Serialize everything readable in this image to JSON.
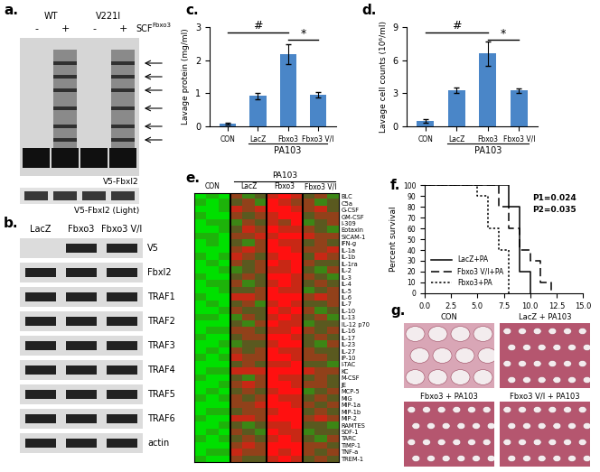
{
  "panel_labels": [
    "a.",
    "b.",
    "c.",
    "d.",
    "e.",
    "f.",
    "g."
  ],
  "blot_a": {
    "groups": [
      "WT",
      "V221I"
    ],
    "lanes": [
      "-",
      "+",
      "-",
      "+"
    ],
    "treatment": {
      "text": "SCF",
      "superscript": "Fbxo3"
    },
    "bands": [
      "V5-Fbxl2",
      "V5-Fbxl2 (Light)"
    ]
  },
  "blot_b": {
    "lanes": [
      "LacZ",
      "Fbxo3",
      "Fbxo3 V/I"
    ],
    "rows": [
      "V5",
      "Fbxl2",
      "TRAF1",
      "TRAF2",
      "TRAF3",
      "TRAF4",
      "TRAF5",
      "TRAF6",
      "actin"
    ]
  },
  "chart_data": [
    {
      "type": "bar",
      "y_label": "Lavage protein (mg/ml)",
      "categories": [
        "CON",
        "LacZ",
        "Fbxo3",
        "Fbxo3 V/I"
      ],
      "values": [
        0.08,
        0.92,
        2.18,
        0.95
      ],
      "errors": [
        0.02,
        0.1,
        0.3,
        0.08
      ],
      "color": "#4a86c8",
      "ylim": [
        0,
        3
      ],
      "yticks": [
        0,
        1,
        2,
        3
      ],
      "group_label": {
        "text": "PA103",
        "categories": [
          "LacZ",
          "Fbxo3",
          "Fbxo3 V/I"
        ]
      },
      "annotations": [
        {
          "text": "#",
          "from": "CON",
          "to": "Fbxo3"
        },
        {
          "text": "*",
          "from": "Fbxo3",
          "to": "Fbxo3 V/I"
        }
      ]
    },
    {
      "type": "bar",
      "y_label": "Lavage cell counts (10⁶/ml)",
      "categories": [
        "CON",
        "LacZ",
        "Fbxo3",
        "Fbxo3 V/I"
      ],
      "values": [
        0.5,
        3.3,
        6.6,
        3.25
      ],
      "errors": [
        0.15,
        0.25,
        1.1,
        0.2
      ],
      "color": "#4a86c8",
      "ylim": [
        0,
        9
      ],
      "yticks": [
        0,
        3,
        6,
        9
      ],
      "group_label": {
        "text": "PA103",
        "categories": [
          "LacZ",
          "Fbxo3",
          "Fbxo3 V/I"
        ]
      },
      "annotations": [
        {
          "text": "#",
          "from": "CON",
          "to": "Fbxo3"
        },
        {
          "text": "*",
          "from": "Fbxo3",
          "to": "Fbxo3 V/I"
        }
      ]
    },
    {
      "type": "heatmap",
      "rows": [
        "BLC",
        "C5a",
        "G-CSF",
        "GM-CSF",
        "I-309",
        "Eotaxin",
        "SICAM-1",
        "IFN-g",
        "IL-1a",
        "IL-1b",
        "IL-1ra",
        "IL-2",
        "IL-3",
        "IL-4",
        "IL-5",
        "IL-6",
        "IL-7",
        "IL-10",
        "IL-13",
        "IL-12 p70",
        "IL-16",
        "IL-17",
        "IL-23",
        "IL-27",
        "IP-10",
        "I-TAC",
        "KC",
        "M-CSF",
        "JE",
        "MCP-5",
        "MIG",
        "MIP-1a",
        "MIP-1b",
        "MIP-2",
        "RAMTES",
        "SDF-1",
        "TARC",
        "TIMP-1",
        "TNF-a",
        "TREM-1"
      ],
      "column_groups": [
        {
          "name": "CON",
          "columns": 3
        },
        {
          "name": "LacZ",
          "columns": 3
        },
        {
          "name": "Fbxo3",
          "columns": 3
        },
        {
          "name": "Fbxo3 V/I",
          "columns": 3
        }
      ],
      "group_label": {
        "text": "PA103",
        "groups": [
          "LacZ",
          "Fbxo3",
          "Fbxo3 V/I"
        ]
      },
      "cells": [
        [
          -3,
          -2,
          -3,
          1,
          -1,
          0,
          2,
          3,
          2,
          0,
          1,
          -1
        ],
        [
          -2,
          -3,
          -2,
          0,
          1,
          -1,
          3,
          2,
          1,
          1,
          -1,
          0
        ],
        [
          -3,
          -3,
          -2,
          2,
          1,
          2,
          3,
          3,
          2,
          1,
          2,
          0
        ],
        [
          -2,
          -3,
          -3,
          1,
          0,
          1,
          2,
          3,
          3,
          0,
          1,
          1
        ],
        [
          -3,
          -2,
          -2,
          -1,
          1,
          0,
          2,
          1,
          3,
          -1,
          0,
          1
        ],
        [
          -3,
          -3,
          -2,
          0,
          2,
          1,
          3,
          2,
          2,
          1,
          0,
          -1
        ],
        [
          -2,
          -2,
          -3,
          1,
          1,
          2,
          2,
          3,
          3,
          2,
          1,
          1
        ],
        [
          -3,
          -2,
          -3,
          0,
          -1,
          1,
          3,
          2,
          2,
          0,
          1,
          0
        ],
        [
          -3,
          -3,
          -3,
          1,
          2,
          1,
          3,
          3,
          2,
          1,
          1,
          2
        ],
        [
          -2,
          -3,
          -2,
          2,
          1,
          0,
          2,
          3,
          3,
          0,
          2,
          1
        ],
        [
          -3,
          -2,
          -3,
          1,
          0,
          1,
          3,
          2,
          3,
          1,
          0,
          0
        ],
        [
          -3,
          -3,
          -2,
          -1,
          0,
          1,
          2,
          2,
          3,
          0,
          -1,
          1
        ],
        [
          -2,
          -3,
          -3,
          0,
          1,
          0,
          3,
          3,
          2,
          1,
          0,
          -1
        ],
        [
          -3,
          -2,
          -2,
          1,
          -1,
          0,
          2,
          3,
          2,
          0,
          1,
          0
        ],
        [
          -3,
          -3,
          -2,
          0,
          0,
          1,
          3,
          2,
          2,
          -1,
          0,
          1
        ],
        [
          -2,
          -3,
          -3,
          2,
          2,
          1,
          3,
          3,
          3,
          1,
          2,
          1
        ],
        [
          -3,
          -2,
          -3,
          0,
          1,
          -1,
          2,
          3,
          2,
          0,
          0,
          1
        ],
        [
          -3,
          -3,
          -2,
          1,
          0,
          0,
          3,
          2,
          3,
          1,
          -1,
          0
        ],
        [
          -2,
          -2,
          -3,
          -1,
          1,
          0,
          2,
          3,
          2,
          0,
          1,
          -1
        ],
        [
          -3,
          -3,
          -3,
          0,
          -1,
          1,
          3,
          2,
          2,
          -1,
          0,
          0
        ],
        [
          -3,
          -2,
          -2,
          1,
          1,
          0,
          2,
          2,
          3,
          1,
          0,
          1
        ],
        [
          -2,
          -3,
          -3,
          0,
          1,
          1,
          3,
          3,
          2,
          0,
          1,
          0
        ],
        [
          -3,
          -3,
          -2,
          -1,
          0,
          0,
          2,
          3,
          3,
          0,
          -1,
          1
        ],
        [
          -3,
          -2,
          -3,
          1,
          0,
          1,
          3,
          2,
          2,
          1,
          0,
          0
        ],
        [
          -2,
          -3,
          -2,
          2,
          1,
          1,
          3,
          3,
          2,
          1,
          1,
          0
        ],
        [
          -3,
          -3,
          -3,
          0,
          1,
          0,
          2,
          2,
          3,
          0,
          0,
          -1
        ],
        [
          -3,
          -2,
          -2,
          2,
          2,
          2,
          3,
          3,
          3,
          2,
          1,
          1
        ],
        [
          -2,
          -3,
          -3,
          0,
          -1,
          1,
          3,
          2,
          2,
          0,
          1,
          0
        ],
        [
          -3,
          -3,
          -2,
          1,
          2,
          1,
          3,
          3,
          2,
          1,
          1,
          0
        ],
        [
          -3,
          -2,
          -3,
          0,
          1,
          0,
          2,
          3,
          3,
          -1,
          0,
          1
        ],
        [
          -2,
          -3,
          -2,
          1,
          0,
          1,
          3,
          2,
          2,
          0,
          1,
          0
        ],
        [
          -3,
          -3,
          -3,
          1,
          1,
          2,
          3,
          3,
          2,
          1,
          0,
          1
        ],
        [
          -3,
          -2,
          -2,
          0,
          1,
          1,
          2,
          3,
          3,
          0,
          1,
          0
        ],
        [
          -2,
          -3,
          -3,
          2,
          2,
          1,
          3,
          3,
          3,
          1,
          2,
          1
        ],
        [
          -3,
          -3,
          -2,
          0,
          -1,
          0,
          2,
          2,
          3,
          0,
          0,
          -1
        ],
        [
          -3,
          -2,
          -3,
          1,
          0,
          -1,
          3,
          2,
          2,
          -1,
          0,
          0
        ],
        [
          -2,
          -3,
          -2,
          0,
          1,
          0,
          2,
          3,
          2,
          0,
          -1,
          1
        ],
        [
          -3,
          -3,
          -3,
          1,
          2,
          1,
          3,
          3,
          3,
          1,
          1,
          0
        ],
        [
          -3,
          -2,
          -2,
          2,
          1,
          1,
          3,
          2,
          3,
          1,
          0,
          1
        ],
        [
          -2,
          -3,
          -3,
          1,
          0,
          0,
          2,
          3,
          2,
          0,
          1,
          0
        ]
      ]
    },
    {
      "type": "line",
      "y_label": "Percent survival",
      "xlim": [
        0,
        15
      ],
      "ylim": [
        0,
        100
      ],
      "xticks": [
        {
          "value": 0,
          "label": "0.0"
        },
        {
          "value": 2.5,
          "label": "2.5"
        },
        {
          "value": 5,
          "label": "5.0"
        },
        {
          "value": 7.5,
          "label": "7.5"
        },
        {
          "value": 10,
          "label": "10.0"
        },
        {
          "value": 12.5,
          "label": "12.5"
        },
        {
          "value": 15,
          "label": "15.0"
        }
      ],
      "yticks": [
        0,
        10,
        20,
        30,
        40,
        50,
        60,
        70,
        80,
        90,
        100
      ],
      "legend": "lower left",
      "series": [
        {
          "name": "LacZ+PA",
          "line_style": "solid",
          "x": [
            0,
            8,
            9,
            10
          ],
          "values": [
            100,
            80,
            20,
            0
          ]
        },
        {
          "name": "Fbxo3 V/I+PA",
          "line_style": "dashed",
          "x": [
            0,
            7,
            8,
            9,
            10,
            11,
            12
          ],
          "values": [
            100,
            80,
            60,
            40,
            30,
            10,
            0
          ]
        },
        {
          "name": "Fbxo3+PA",
          "line_style": "dotted",
          "x": [
            0,
            5,
            6,
            7,
            8
          ],
          "values": [
            100,
            90,
            60,
            40,
            0
          ]
        }
      ],
      "annotations": [
        "P1=0.024",
        "P2=0.035"
      ]
    }
  ],
  "histology": {
    "panels": [
      "CON",
      "LacZ + PA103",
      "Fbxo3 + PA103",
      "Fbxo3 V/I + PA103"
    ]
  }
}
